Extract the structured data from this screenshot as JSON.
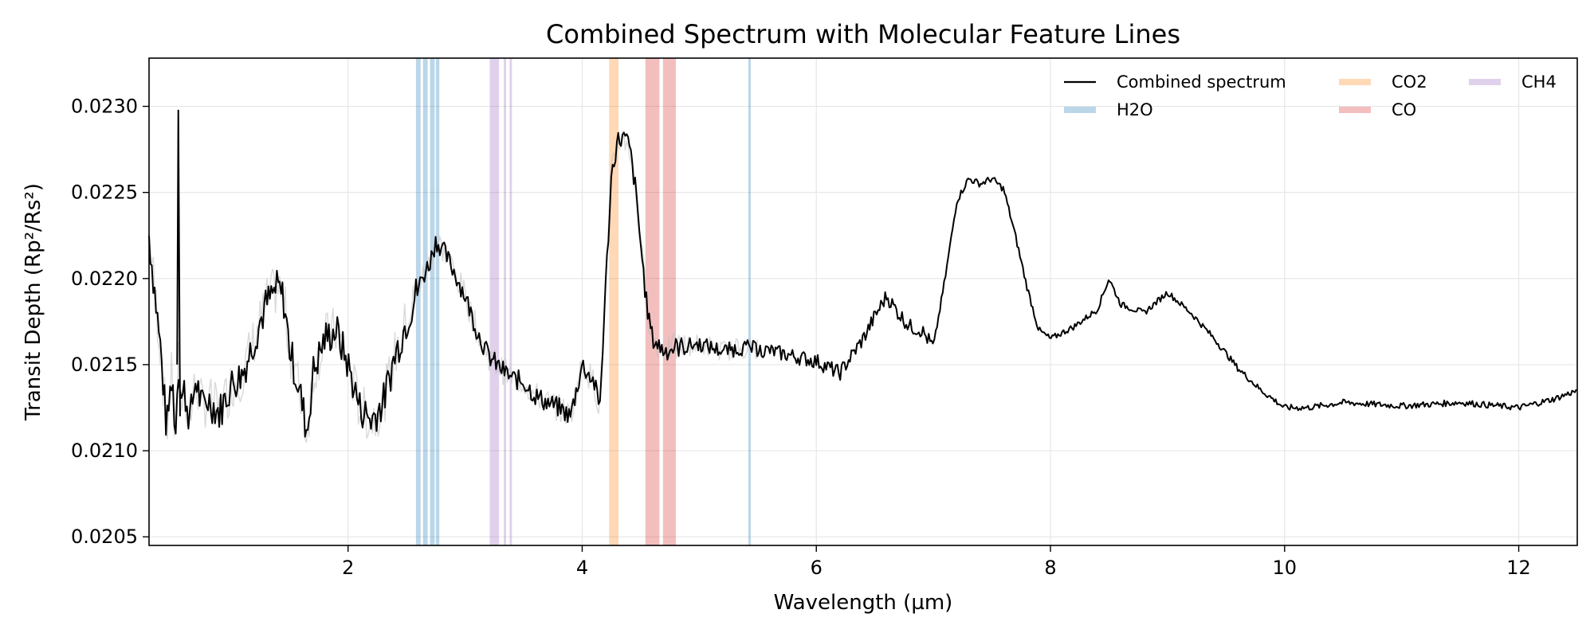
{
  "chart_data": {
    "type": "line",
    "title": "Combined Spectrum with Molecular Feature Lines",
    "xlabel": "Wavelength (µm)",
    "ylabel": "Transit Depth (Rp²/Rs²)",
    "xlim": [
      0.3,
      12.5
    ],
    "ylim": [
      0.02045,
      0.02328
    ],
    "xticks": [
      2,
      4,
      6,
      8,
      10,
      12
    ],
    "yticks": [
      0.0205,
      0.021,
      0.0215,
      0.022,
      0.0225,
      0.023
    ],
    "ytick_labels": [
      "0.0205",
      "0.0210",
      "0.0215",
      "0.0220",
      "0.0225",
      "0.0230"
    ],
    "grid": true,
    "legend_position": "top-right",
    "legend": [
      {
        "label": "Combined spectrum",
        "color": "#000000",
        "kind": "line"
      },
      {
        "label": "H2O",
        "color": "#1f77b4",
        "kind": "band"
      },
      {
        "label": "CO2",
        "color": "#ff7f0e",
        "kind": "band"
      },
      {
        "label": "CO",
        "color": "#d62728",
        "kind": "band"
      },
      {
        "label": "CH4",
        "color": "#9467bd",
        "kind": "band"
      }
    ],
    "feature_bands": [
      {
        "molecule": "H2O",
        "color": "#1f77b4",
        "x": [
          2.58,
          2.62
        ]
      },
      {
        "molecule": "H2O",
        "color": "#1f77b4",
        "x": [
          2.64,
          2.68
        ]
      },
      {
        "molecule": "H2O",
        "color": "#1f77b4",
        "x": [
          2.7,
          2.74
        ]
      },
      {
        "molecule": "H2O",
        "color": "#1f77b4",
        "x": [
          2.75,
          2.78
        ]
      },
      {
        "molecule": "H2O",
        "color": "#1f77b4",
        "x": [
          5.42,
          5.44
        ]
      },
      {
        "molecule": "CH4",
        "color": "#9467bd",
        "x": [
          3.21,
          3.29
        ]
      },
      {
        "molecule": "CH4",
        "color": "#9467bd",
        "x": [
          3.33,
          3.35
        ]
      },
      {
        "molecule": "CH4",
        "color": "#9467bd",
        "x": [
          3.38,
          3.4
        ]
      },
      {
        "molecule": "CO2",
        "color": "#ff7f0e",
        "x": [
          4.23,
          4.31
        ]
      },
      {
        "molecule": "CO",
        "color": "#d62728",
        "x": [
          4.54,
          4.66
        ]
      },
      {
        "molecule": "CO",
        "color": "#d62728",
        "x": [
          4.69,
          4.8
        ]
      }
    ],
    "series": [
      {
        "name": "Combined spectrum",
        "color": "#000000",
        "x": [
          0.3,
          0.4,
          0.45,
          0.5,
          0.52,
          0.55,
          0.58,
          0.6,
          0.65,
          0.7,
          0.75,
          0.8,
          0.9,
          1.0,
          1.1,
          1.2,
          1.3,
          1.4,
          1.45,
          1.5,
          1.6,
          1.65,
          1.7,
          1.8,
          1.9,
          2.0,
          2.1,
          2.2,
          2.3,
          2.4,
          2.5,
          2.6,
          2.7,
          2.75,
          2.8,
          2.9,
          3.0,
          3.1,
          3.2,
          3.3,
          3.4,
          3.5,
          3.6,
          3.7,
          3.8,
          3.9,
          4.0,
          4.1,
          4.15,
          4.2,
          4.25,
          4.3,
          4.35,
          4.4,
          4.45,
          4.5,
          4.55,
          4.6,
          4.7,
          4.8,
          5.0,
          5.2,
          5.4,
          5.6,
          5.8,
          6.0,
          6.2,
          6.4,
          6.5,
          6.6,
          6.7,
          6.8,
          6.9,
          7.0,
          7.1,
          7.2,
          7.3,
          7.4,
          7.5,
          7.6,
          7.7,
          7.8,
          7.9,
          8.0,
          8.2,
          8.4,
          8.5,
          8.6,
          8.8,
          9.0,
          9.2,
          9.4,
          9.6,
          9.8,
          10.0,
          10.2,
          10.5,
          11.0,
          11.5,
          12.0,
          12.3,
          12.5
        ],
        "y": [
          0.02225,
          0.02158,
          0.02112,
          0.02148,
          0.02105,
          0.02152,
          0.02128,
          0.02135,
          0.02118,
          0.02142,
          0.02125,
          0.0213,
          0.02122,
          0.02138,
          0.02145,
          0.02165,
          0.02185,
          0.02195,
          0.02188,
          0.0216,
          0.0213,
          0.0211,
          0.02145,
          0.02165,
          0.0217,
          0.0215,
          0.02125,
          0.02118,
          0.02128,
          0.02155,
          0.02175,
          0.02195,
          0.0221,
          0.02222,
          0.02218,
          0.02205,
          0.0219,
          0.0217,
          0.02155,
          0.02148,
          0.02142,
          0.0214,
          0.02132,
          0.02128,
          0.02125,
          0.0212,
          0.0215,
          0.0214,
          0.02125,
          0.02195,
          0.0226,
          0.0228,
          0.02282,
          0.02278,
          0.02255,
          0.0222,
          0.02185,
          0.02165,
          0.02158,
          0.0216,
          0.02162,
          0.02158,
          0.0216,
          0.02158,
          0.02155,
          0.02152,
          0.02145,
          0.02165,
          0.02178,
          0.0219,
          0.0218,
          0.02172,
          0.0217,
          0.0216,
          0.022,
          0.02245,
          0.02258,
          0.02255,
          0.02258,
          0.02252,
          0.02225,
          0.02195,
          0.0217,
          0.02165,
          0.02172,
          0.02182,
          0.022,
          0.02185,
          0.0218,
          0.02192,
          0.0218,
          0.02165,
          0.02148,
          0.02135,
          0.02125,
          0.02125,
          0.02128,
          0.02126,
          0.02128,
          0.02125,
          0.0213,
          0.02135
        ]
      }
    ]
  }
}
